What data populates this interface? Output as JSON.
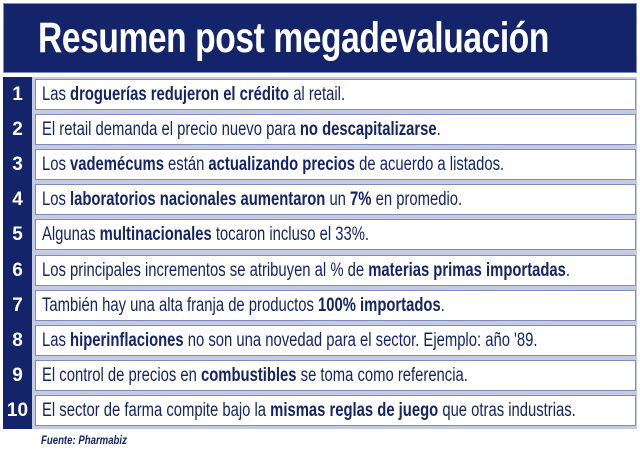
{
  "title": "Resumen post megadevaluación",
  "colors": {
    "navy": "#14246b",
    "row_border": "#7f8bb8",
    "row_gap": "#c5cbe0"
  },
  "items": [
    {
      "number": "1",
      "segments": [
        {
          "t": "Las ",
          "b": false
        },
        {
          "t": "droguerías redujeron el crédito",
          "b": true
        },
        {
          "t": " al retail.",
          "b": false
        }
      ]
    },
    {
      "number": "2",
      "segments": [
        {
          "t": "El retail demanda el precio nuevo para ",
          "b": false
        },
        {
          "t": "no descapitalizarse",
          "b": true
        },
        {
          "t": ".",
          "b": false
        }
      ]
    },
    {
      "number": "3",
      "segments": [
        {
          "t": "Los ",
          "b": false
        },
        {
          "t": "vademécums",
          "b": true
        },
        {
          "t": " están ",
          "b": false
        },
        {
          "t": "actualizando precios",
          "b": true
        },
        {
          "t": " de acuerdo a listados.",
          "b": false
        }
      ]
    },
    {
      "number": "4",
      "segments": [
        {
          "t": "Los ",
          "b": false
        },
        {
          "t": "laboratorios nacionales aumentaron",
          "b": true
        },
        {
          "t": " un ",
          "b": false
        },
        {
          "t": "7%",
          "b": true
        },
        {
          "t": " en promedio.",
          "b": false
        }
      ]
    },
    {
      "number": "5",
      "segments": [
        {
          "t": "Algunas ",
          "b": false
        },
        {
          "t": "multinacionales",
          "b": true
        },
        {
          "t": " tocaron incluso el 33%.",
          "b": false
        }
      ]
    },
    {
      "number": "6",
      "segments": [
        {
          "t": "Los principales incrementos se atribuyen al % de ",
          "b": false
        },
        {
          "t": "materias primas importadas",
          "b": true
        },
        {
          "t": ".",
          "b": false
        }
      ]
    },
    {
      "number": "7",
      "segments": [
        {
          "t": "También hay una alta franja de productos ",
          "b": false
        },
        {
          "t": "100% importados",
          "b": true
        },
        {
          "t": ".",
          "b": false
        }
      ]
    },
    {
      "number": "8",
      "segments": [
        {
          "t": "Las ",
          "b": false
        },
        {
          "t": "hiperinflaciones",
          "b": true
        },
        {
          "t": " no son una novedad para el sector. Ejemplo: año '89.",
          "b": false
        }
      ]
    },
    {
      "number": "9",
      "segments": [
        {
          "t": "El control de precios en ",
          "b": false
        },
        {
          "t": "combustibles",
          "b": true
        },
        {
          "t": " se toma como referencia.",
          "b": false
        }
      ]
    },
    {
      "number": "10",
      "segments": [
        {
          "t": "El sector de farma compite bajo la ",
          "b": false
        },
        {
          "t": "mismas reglas de juego",
          "b": true
        },
        {
          "t": " que otras industrias.",
          "b": false
        }
      ]
    }
  ],
  "source": "Fuente: Pharmabiz"
}
